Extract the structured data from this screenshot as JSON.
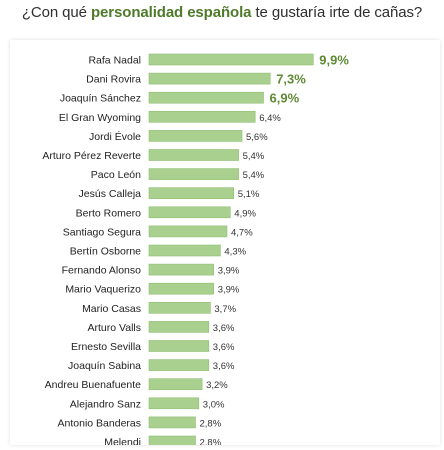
{
  "header": {
    "title_prefix": "¿Con qué ",
    "title_highlight": "personalidad española",
    "title_suffix": " te gustaría irte de cañas?"
  },
  "chart_data": {
    "type": "bar",
    "orientation": "horizontal",
    "title": "¿Con qué personalidad española te gustaría irte de cañas?",
    "categories": [
      "Rafa Nadal",
      "Dani Rovira",
      "Joaquín Sánchez",
      "El Gran Wyoming",
      "Jordi Évole",
      "Arturo Pérez Reverte",
      "Paco León",
      "Jesús Calleja",
      "Berto Romero",
      "Santiago Segura",
      "Bertín Osborne",
      "Fernando Alonso",
      "Mario Vaquerizo",
      "Mario Casas",
      "Arturo Valls",
      "Ernesto Sevilla",
      "Joaquín Sabina",
      "Andreu Buenafuente",
      "Alejandro Sanz",
      "Antonio Banderas",
      "Melendi"
    ],
    "values": [
      9.9,
      7.3,
      6.9,
      6.4,
      5.6,
      5.4,
      5.4,
      5.1,
      4.9,
      4.7,
      4.3,
      3.9,
      3.9,
      3.7,
      3.6,
      3.6,
      3.6,
      3.2,
      3.0,
      2.8,
      2.8
    ],
    "value_labels": [
      "9,9%",
      "7,3%",
      "6,9%",
      "6,4%",
      "5,6%",
      "5,4%",
      "5,4%",
      "5,1%",
      "4,9%",
      "4,7%",
      "4,3%",
      "3,9%",
      "3,9%",
      "3,7%",
      "3,6%",
      "3,6%",
      "3,6%",
      "3,2%",
      "3,0%",
      "2,8%",
      "2,8%"
    ],
    "highlighted_top": 3,
    "xlim": [
      0,
      10
    ],
    "grid": false,
    "legend": "none",
    "colors": {
      "bar_fill": "#a9d08e",
      "bar_stroke": "#8fbf72",
      "highlight_text": "#5e8a34"
    }
  }
}
